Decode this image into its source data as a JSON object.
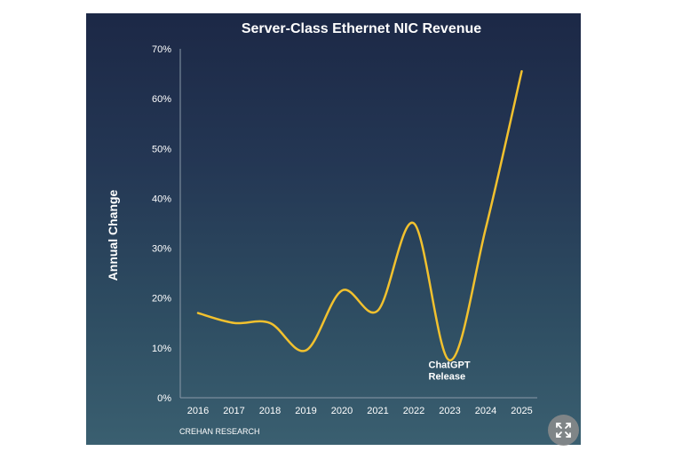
{
  "chart_data": {
    "type": "line",
    "title": "Server-Class Ethernet NIC Revenue",
    "ylabel": "Annual Change",
    "xlabel": "",
    "x": [
      "2016",
      "2017",
      "2018",
      "2019",
      "2020",
      "2021",
      "2022",
      "2023",
      "2024",
      "2025"
    ],
    "y_tick_labels": [
      "0%",
      "10%",
      "20%",
      "30%",
      "40%",
      "50%",
      "60%",
      "70%"
    ],
    "ylim": [
      0,
      70
    ],
    "series": [
      {
        "values": [
          17,
          15,
          15,
          9.5,
          21.5,
          17.5,
          35,
          7.5,
          34,
          65.5
        ]
      }
    ],
    "annotations": [
      {
        "text_line1": "ChatGPT",
        "text_line2": "Release",
        "x": "2023",
        "y": 6
      }
    ],
    "line_color": "#f2c12e",
    "grid": false,
    "source": "CREHAN RESEARCH"
  },
  "ui": {
    "expand_icon": "expand-arrows-icon"
  }
}
